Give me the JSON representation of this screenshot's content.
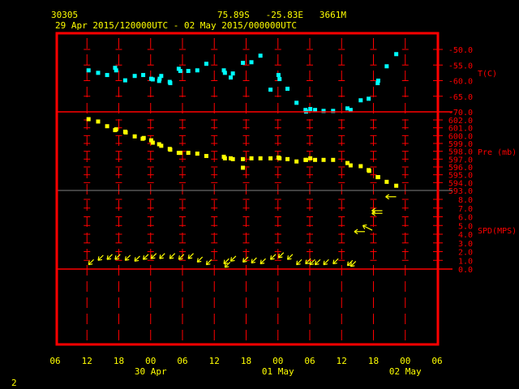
{
  "header": {
    "station": "30305",
    "location": "75.89S   -25.83E   3661M",
    "period": "29 Apr 2015/120000UTC - 02 May 2015/000000UTC"
  },
  "footer": {
    "page": "2"
  },
  "colors": {
    "frame": "#ff0000",
    "temperature": "#00ffff",
    "pressure": "#ffff00",
    "wind": "#ffff00",
    "text": "#ffff00",
    "divider": "#808080"
  },
  "chart_data": [
    {
      "type": "scatter",
      "panel": "temperature",
      "ylabel": "T(C)",
      "yticks": [
        "-50.0",
        "-55.0",
        "-60.0",
        "-65.0",
        "-70.0"
      ],
      "ylim": [
        -70,
        -50
      ],
      "x_unit": "hours after 29 Apr 2015 06UTC",
      "points": [
        [
          6.3,
          -56.7
        ],
        [
          8.1,
          -57.5
        ],
        [
          9.8,
          -58.2
        ],
        [
          11.3,
          -55.9
        ],
        [
          11.5,
          -56.7
        ],
        [
          13.2,
          -59.9
        ],
        [
          15.0,
          -58.5
        ],
        [
          16.6,
          -58.2
        ],
        [
          18.1,
          -59.4
        ],
        [
          18.4,
          -59.6
        ],
        [
          19.6,
          -60.1
        ],
        [
          19.7,
          -59.4
        ],
        [
          20.0,
          -58.5
        ],
        [
          21.6,
          -60.4
        ],
        [
          21.7,
          -60.8
        ],
        [
          23.3,
          -56.2
        ],
        [
          23.6,
          -56.9
        ],
        [
          25.1,
          -56.9
        ],
        [
          26.8,
          -56.7
        ],
        [
          28.5,
          -54.6
        ],
        [
          31.8,
          -56.7
        ],
        [
          32.0,
          -57.5
        ],
        [
          33.1,
          -59.0
        ],
        [
          33.5,
          -57.7
        ],
        [
          35.4,
          -54.3
        ],
        [
          37.0,
          -54.1
        ],
        [
          38.7,
          -52.0
        ],
        [
          40.6,
          -62.9
        ],
        [
          42.1,
          -58.2
        ],
        [
          42.3,
          -59.5
        ],
        [
          43.8,
          -62.6
        ],
        [
          45.5,
          -67.1
        ],
        [
          47.2,
          -69.4
        ],
        [
          47.3,
          -69.9
        ],
        [
          48.1,
          -69.1
        ],
        [
          49.0,
          -69.4
        ],
        [
          50.6,
          -69.7
        ],
        [
          52.4,
          -69.7
        ],
        [
          55.1,
          -68.9
        ],
        [
          55.7,
          -69.4
        ],
        [
          57.6,
          -66.3
        ],
        [
          59.1,
          -65.8
        ],
        [
          60.8,
          -60.8
        ],
        [
          60.9,
          -60.0
        ],
        [
          62.5,
          -55.4
        ],
        [
          64.3,
          -51.5
        ]
      ]
    },
    {
      "type": "scatter",
      "panel": "pressure",
      "ylabel": "Pre (mb)",
      "yticks": [
        "602.0",
        "601.0",
        "600.0",
        "599.0",
        "598.0",
        "597.0",
        "596.0",
        "595.0",
        "594.0",
        "593.0"
      ],
      "ylim": [
        593,
        602
      ],
      "x_unit": "hours after 29 Apr 2015 06UTC",
      "points": [
        [
          6.3,
          602.1
        ],
        [
          8.1,
          601.8
        ],
        [
          9.8,
          601.2
        ],
        [
          11.3,
          600.7
        ],
        [
          11.5,
          600.8
        ],
        [
          13.2,
          600.5
        ],
        [
          13.3,
          600.4
        ],
        [
          15.0,
          599.9
        ],
        [
          16.5,
          599.6
        ],
        [
          16.7,
          599.7
        ],
        [
          18.1,
          599.4
        ],
        [
          18.4,
          599.1
        ],
        [
          19.6,
          598.9
        ],
        [
          20.0,
          598.7
        ],
        [
          21.6,
          598.3
        ],
        [
          21.7,
          598.2
        ],
        [
          23.3,
          597.8
        ],
        [
          23.6,
          597.8
        ],
        [
          25.1,
          597.8
        ],
        [
          26.8,
          597.7
        ],
        [
          28.5,
          597.4
        ],
        [
          31.8,
          597.3
        ],
        [
          32.0,
          597.1
        ],
        [
          33.1,
          597.1
        ],
        [
          33.5,
          597.0
        ],
        [
          35.4,
          597.0
        ],
        [
          35.4,
          595.9
        ],
        [
          37.0,
          597.1
        ],
        [
          38.7,
          597.1
        ],
        [
          40.6,
          597.1
        ],
        [
          42.1,
          597.2
        ],
        [
          42.3,
          597.1
        ],
        [
          43.8,
          597.0
        ],
        [
          45.5,
          596.7
        ],
        [
          47.2,
          596.9
        ],
        [
          47.3,
          596.9
        ],
        [
          48.1,
          597.1
        ],
        [
          49.0,
          596.9
        ],
        [
          50.6,
          596.9
        ],
        [
          52.4,
          596.9
        ],
        [
          55.1,
          596.5
        ],
        [
          55.7,
          596.2
        ],
        [
          57.6,
          596.1
        ],
        [
          59.1,
          595.6
        ],
        [
          59.2,
          595.5
        ],
        [
          60.8,
          594.7
        ],
        [
          60.9,
          594.7
        ],
        [
          62.5,
          594.1
        ],
        [
          64.3,
          593.6
        ]
      ]
    },
    {
      "type": "scatter",
      "panel": "wind",
      "ylabel": "SPD(MPS)",
      "yticks": [
        "8.0",
        "7.0",
        "6.0",
        "5.0",
        "4.0",
        "3.0",
        "2.0",
        "1.0",
        "0.0"
      ],
      "ylim": [
        0,
        8
      ],
      "x_unit": "hours after 29 Apr 2015 06UTC",
      "marker": "wind-arrow",
      "points_hour_speed_toward": [
        [
          6.3,
          0.5,
          "SW"
        ],
        [
          8.1,
          1.0,
          "SW"
        ],
        [
          9.8,
          1.1,
          "SW"
        ],
        [
          11.3,
          1.1,
          "SW"
        ],
        [
          13.2,
          1.0,
          "SW"
        ],
        [
          15.0,
          0.9,
          "SW"
        ],
        [
          16.6,
          1.1,
          "SW"
        ],
        [
          18.1,
          1.2,
          "SW"
        ],
        [
          19.7,
          1.2,
          "SW"
        ],
        [
          21.6,
          1.2,
          "SW"
        ],
        [
          23.3,
          1.1,
          "SW"
        ],
        [
          25.1,
          1.2,
          "SW"
        ],
        [
          26.8,
          0.8,
          "SW"
        ],
        [
          28.5,
          0.5,
          "SW"
        ],
        [
          31.8,
          0.6,
          "SW"
        ],
        [
          32.0,
          0.2,
          "SW"
        ],
        [
          33.1,
          0.9,
          "SW"
        ],
        [
          35.4,
          0.8,
          "SW"
        ],
        [
          37.0,
          0.7,
          "SW"
        ],
        [
          38.7,
          0.6,
          "SW"
        ],
        [
          40.6,
          1.1,
          "SW"
        ],
        [
          42.1,
          1.3,
          "SW"
        ],
        [
          43.8,
          1.1,
          "SW"
        ],
        [
          45.5,
          0.5,
          "SW"
        ],
        [
          47.2,
          0.6,
          "SW"
        ],
        [
          48.0,
          0.5,
          "SW"
        ],
        [
          49.0,
          0.5,
          "SW"
        ],
        [
          50.6,
          0.5,
          "SW"
        ],
        [
          52.4,
          0.6,
          "SW"
        ],
        [
          55.1,
          0.4,
          "SW"
        ],
        [
          55.7,
          0.3,
          "SW"
        ],
        [
          56.4,
          4.3,
          "W"
        ],
        [
          58.0,
          5.0,
          "NW"
        ],
        [
          59.7,
          6.4,
          "W"
        ],
        [
          59.7,
          6.7,
          "W"
        ],
        [
          62.3,
          8.3,
          "W"
        ]
      ]
    }
  ],
  "xaxis": {
    "ticks": [
      "06",
      "12",
      "18",
      "00",
      "06",
      "12",
      "18",
      "00",
      "06",
      "12",
      "18",
      "00",
      "06"
    ],
    "range_hours": [
      0,
      72
    ],
    "dates": [
      {
        "label": "30 Apr",
        "hour": 18
      },
      {
        "label": "01 May",
        "hour": 42
      },
      {
        "label": "02 May",
        "hour": 66
      }
    ]
  }
}
